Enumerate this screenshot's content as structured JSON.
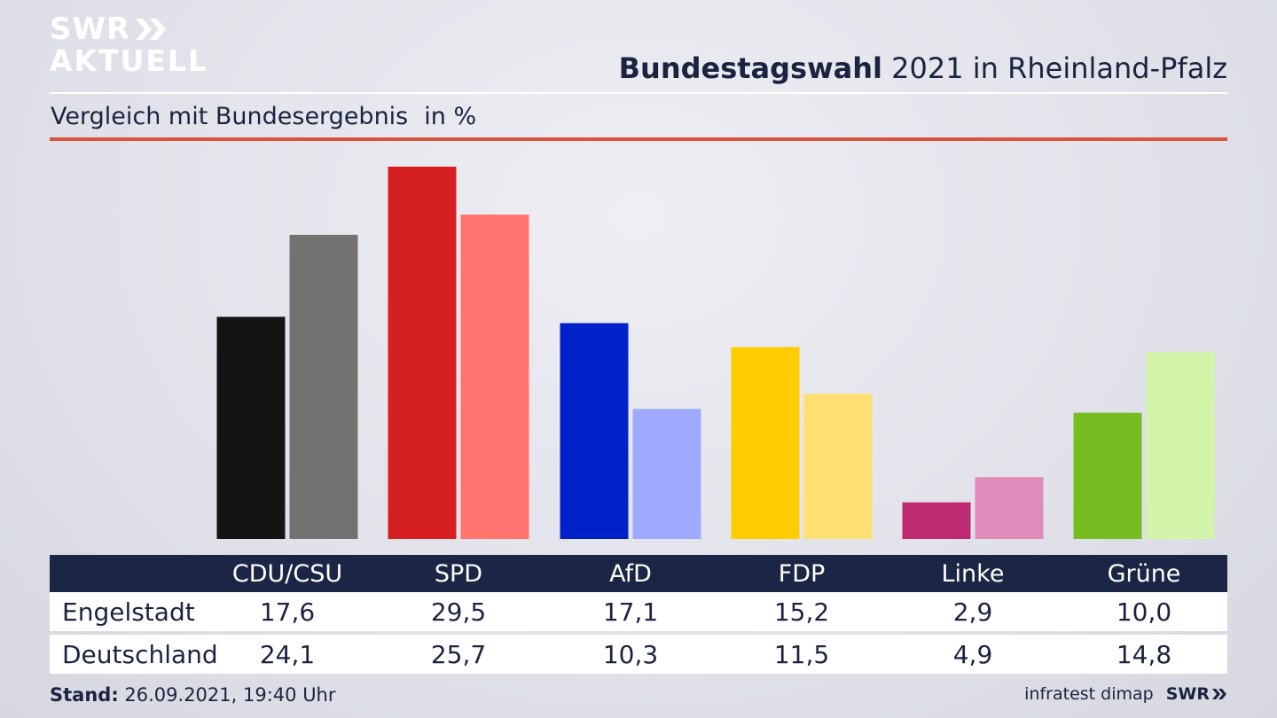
{
  "header": {
    "logo_line1": "SWR",
    "logo_line2": "AKTUELL",
    "title_bold": "Bundestagswahl",
    "title_rest": "2021 in Rheinland-Pfalz",
    "subtitle": "Vergleich mit Bundesergebnis",
    "unit": "in %"
  },
  "chart_data": {
    "type": "bar",
    "categories": [
      "CDU/CSU",
      "SPD",
      "AfD",
      "FDP",
      "Linke",
      "Grüne"
    ],
    "series": [
      {
        "name": "Engelstadt",
        "values": [
          17.6,
          29.5,
          17.1,
          15.2,
          2.9,
          10.0
        ],
        "labels": [
          "17,6",
          "29,5",
          "17,1",
          "15,2",
          "2,9",
          "10,0"
        ]
      },
      {
        "name": "Deutschland",
        "values": [
          24.1,
          25.7,
          10.3,
          11.5,
          4.9,
          14.8
        ],
        "labels": [
          "24,1",
          "25,7",
          "10,3",
          "11,5",
          "4,9",
          "14,8"
        ]
      }
    ],
    "colors": {
      "Engelstadt": [
        "#141414",
        "#d61f20",
        "#0022c8",
        "#ffcc00",
        "#bd2a72",
        "#77bd22"
      ],
      "Deutschland": [
        "#737271",
        "#ff736e",
        "#9eaaff",
        "#fde071",
        "#e08cba",
        "#d3f5aa"
      ]
    },
    "ylim": [
      0,
      29.5
    ],
    "grid": false
  },
  "footer": {
    "stand_label": "Stand:",
    "stand_value": "26.09.2021, 19:40 Uhr",
    "source": "infratest dimap",
    "brand": "SWR"
  }
}
